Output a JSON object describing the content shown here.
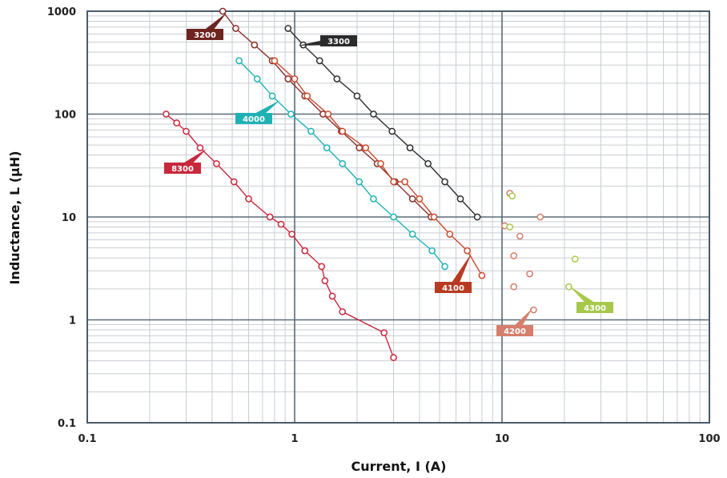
{
  "chart_data": {
    "type": "scatter",
    "title": "",
    "xlabel": "Current, I (A)",
    "ylabel": "Inductance, L (µH)",
    "xscale": "log",
    "yscale": "log",
    "xlim": [
      0.1,
      100
    ],
    "ylim": [
      0.1,
      1000
    ],
    "x_tick_labels": [
      "0.1",
      "1",
      "10",
      "100"
    ],
    "y_tick_labels": [
      "0.1",
      "1",
      "10",
      "100",
      "1000"
    ],
    "grid": true,
    "series": [
      {
        "name": "3200",
        "color": "#8a2f2a",
        "connected": true,
        "points": [
          [
            0.45,
            1000
          ],
          [
            0.52,
            680
          ],
          [
            0.64,
            470
          ],
          [
            0.78,
            330
          ],
          [
            0.93,
            220
          ],
          [
            1.12,
            150
          ],
          [
            1.37,
            100
          ],
          [
            1.68,
            68
          ],
          [
            2.05,
            47
          ],
          [
            2.5,
            33
          ],
          [
            3.05,
            22
          ],
          [
            3.7,
            15
          ],
          [
            4.55,
            10
          ]
        ]
      },
      {
        "name": "3300",
        "color": "#2e2e2e",
        "connected": true,
        "points": [
          [
            0.93,
            680
          ],
          [
            1.1,
            470
          ],
          [
            1.32,
            330
          ],
          [
            1.6,
            220
          ],
          [
            2.0,
            150
          ],
          [
            2.4,
            100
          ],
          [
            2.95,
            68
          ],
          [
            3.6,
            47
          ],
          [
            4.4,
            33
          ],
          [
            5.3,
            22
          ],
          [
            6.3,
            15
          ],
          [
            7.6,
            10
          ]
        ]
      },
      {
        "name": "4000",
        "color": "#1fb2b5",
        "connected": true,
        "points": [
          [
            0.54,
            330
          ],
          [
            0.66,
            220
          ],
          [
            0.78,
            150
          ],
          [
            0.96,
            100
          ],
          [
            1.2,
            68
          ],
          [
            1.43,
            47
          ],
          [
            1.7,
            33
          ],
          [
            2.05,
            22
          ],
          [
            2.4,
            15
          ],
          [
            3.0,
            10
          ],
          [
            3.7,
            6.8
          ],
          [
            4.6,
            4.7
          ],
          [
            5.3,
            3.3
          ]
        ]
      },
      {
        "name": "4100",
        "color": "#c64a2c",
        "connected": true,
        "points": [
          [
            0.8,
            330
          ],
          [
            1.0,
            220
          ],
          [
            1.15,
            150
          ],
          [
            1.45,
            100
          ],
          [
            1.7,
            68
          ],
          [
            2.2,
            47
          ],
          [
            2.6,
            33
          ],
          [
            3.0,
            22
          ],
          [
            3.4,
            22
          ],
          [
            4.0,
            15
          ],
          [
            4.7,
            10
          ],
          [
            5.6,
            6.8
          ],
          [
            6.8,
            4.7
          ],
          [
            8.0,
            2.7
          ]
        ]
      },
      {
        "name": "4200",
        "color": "#d57e6b",
        "connected": false,
        "points": [
          [
            10.9,
            17
          ],
          [
            10.3,
            8.2
          ],
          [
            12.2,
            6.5
          ],
          [
            11.4,
            4.2
          ],
          [
            11.4,
            2.1
          ],
          [
            13.6,
            2.8
          ],
          [
            15.3,
            10
          ],
          [
            14.2,
            1.25
          ]
        ]
      },
      {
        "name": "4300",
        "color": "#a8c84c",
        "connected": false,
        "points": [
          [
            11.2,
            16
          ],
          [
            10.9,
            8.0
          ],
          [
            22.5,
            3.9
          ],
          [
            21.0,
            2.1
          ]
        ]
      },
      {
        "name": "8300",
        "color": "#c8283c",
        "connected": true,
        "points": [
          [
            0.24,
            100
          ],
          [
            0.27,
            82
          ],
          [
            0.3,
            68
          ],
          [
            0.35,
            47
          ],
          [
            0.42,
            33
          ],
          [
            0.51,
            22
          ],
          [
            0.6,
            15
          ],
          [
            0.76,
            10
          ],
          [
            0.86,
            8.5
          ],
          [
            0.97,
            6.8
          ],
          [
            1.12,
            4.7
          ],
          [
            1.35,
            3.3
          ],
          [
            1.4,
            2.4
          ],
          [
            1.52,
            1.7
          ],
          [
            1.7,
            1.2
          ],
          [
            2.7,
            0.75
          ],
          [
            3.0,
            0.43
          ]
        ]
      }
    ],
    "tags": [
      {
        "series": "3200",
        "label": "3200",
        "color": "#6d2320",
        "text_color": "#ffffff"
      },
      {
        "series": "3300",
        "label": "3300",
        "color": "#2b2b2b",
        "text_color": "#ffffff"
      },
      {
        "series": "4000",
        "label": "4000",
        "color": "#1fb2b5",
        "text_color": "#ffffff"
      },
      {
        "series": "4100",
        "label": "4100",
        "color": "#b83a22",
        "text_color": "#ffffff"
      },
      {
        "series": "4200",
        "label": "4200",
        "color": "#d57e6b",
        "text_color": "#ffffff"
      },
      {
        "series": "4300",
        "label": "4300",
        "color": "#a8c84c",
        "text_color": "#ffffff"
      },
      {
        "series": "8300",
        "label": "8300",
        "color": "#c8283c",
        "text_color": "#ffffff"
      }
    ],
    "style": {
      "grid_major_color": "#5a6b78",
      "grid_minor_color": "#c7cdd3",
      "frame_color": "#4a5b69"
    }
  }
}
